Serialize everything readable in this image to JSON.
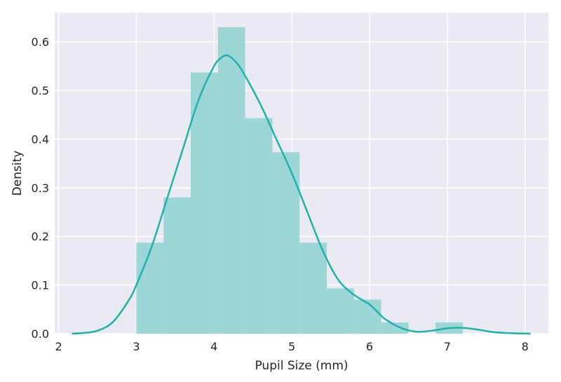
{
  "chart_data": {
    "type": "histogram",
    "xlabel": "Pupil Size (mm)",
    "ylabel": "Density",
    "xlim": [
      1.95,
      8.3
    ],
    "ylim": [
      0,
      0.66
    ],
    "xticks": [
      "2",
      "3",
      "4",
      "5",
      "6",
      "7",
      "8"
    ],
    "yticks": [
      "0.0",
      "0.1",
      "0.2",
      "0.3",
      "0.4",
      "0.5",
      "0.6"
    ],
    "grid": true,
    "bins": [
      {
        "x0": 3.0,
        "x1": 3.35,
        "density": 0.187
      },
      {
        "x0": 3.35,
        "x1": 3.7,
        "density": 0.28
      },
      {
        "x0": 3.7,
        "x1": 4.05,
        "density": 0.537
      },
      {
        "x0": 4.05,
        "x1": 4.4,
        "density": 0.63
      },
      {
        "x0": 4.4,
        "x1": 4.75,
        "density": 0.443
      },
      {
        "x0": 4.75,
        "x1": 5.1,
        "density": 0.373
      },
      {
        "x0": 5.1,
        "x1": 5.45,
        "density": 0.187
      },
      {
        "x0": 5.45,
        "x1": 5.8,
        "density": 0.093
      },
      {
        "x0": 5.8,
        "x1": 6.15,
        "density": 0.07
      },
      {
        "x0": 6.15,
        "x1": 6.5,
        "density": 0.023
      },
      {
        "x0": 6.5,
        "x1": 6.85,
        "density": 0.0
      },
      {
        "x0": 6.85,
        "x1": 7.2,
        "density": 0.023
      }
    ],
    "kde": {
      "x": [
        2.17,
        2.3,
        2.5,
        2.7,
        2.9,
        3.0,
        3.2,
        3.4,
        3.6,
        3.8,
        4.0,
        4.1,
        4.15,
        4.2,
        4.3,
        4.4,
        4.6,
        4.8,
        5.0,
        5.2,
        5.4,
        5.6,
        5.8,
        6.0,
        6.1,
        6.2,
        6.4,
        6.6,
        6.8,
        7.0,
        7.2,
        7.4,
        7.6,
        7.8,
        8.07
      ],
      "y": [
        0.0,
        0.001,
        0.006,
        0.024,
        0.068,
        0.1,
        0.18,
        0.28,
        0.38,
        0.48,
        0.55,
        0.568,
        0.572,
        0.57,
        0.555,
        0.53,
        0.47,
        0.4,
        0.33,
        0.25,
        0.17,
        0.11,
        0.08,
        0.06,
        0.045,
        0.03,
        0.012,
        0.004,
        0.006,
        0.011,
        0.012,
        0.008,
        0.003,
        0.001,
        0.0
      ]
    },
    "colors": {
      "bar_fill": "#9cd6d6",
      "kde_line": "#20b2aa",
      "plot_bg": "#eaeaf2",
      "grid": "#ffffff"
    }
  }
}
